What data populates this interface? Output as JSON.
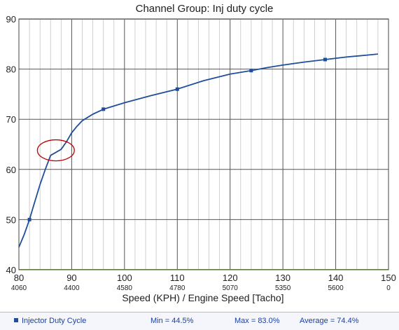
{
  "chart_data": {
    "type": "line",
    "title": "Channel Group: Inj duty cycle",
    "xlabel": "Speed (KPH) / Engine Speed [Tacho]",
    "ylabel": "",
    "xlim": [
      80,
      150
    ],
    "ylim": [
      40,
      90
    ],
    "x_ticks": [
      80,
      90,
      100,
      110,
      120,
      130,
      140,
      150
    ],
    "x_tick_labels": [
      "80",
      "90",
      "100",
      "110",
      "120",
      "130",
      "140",
      "150"
    ],
    "x_secondary_tick_labels": [
      "4060",
      "4400",
      "4580",
      "4780",
      "5070",
      "5350",
      "5600",
      "0"
    ],
    "y_ticks": [
      40,
      50,
      60,
      70,
      80,
      90
    ],
    "y_tick_labels": [
      "40",
      "50",
      "60",
      "70",
      "80",
      "90"
    ],
    "grid": true,
    "series": [
      {
        "name": "Injector Duty Cycle",
        "color": "#1f4e9b",
        "x": [
          80,
          81,
          82,
          83,
          84,
          85,
          86,
          88,
          89,
          90,
          91,
          92,
          94,
          96,
          100,
          105,
          110,
          115,
          120,
          124,
          127,
          130,
          134,
          138,
          142,
          146,
          148
        ],
        "y": [
          44.5,
          47,
          50,
          53.5,
          57,
          60,
          62.8,
          64,
          65.5,
          67.3,
          68.6,
          69.7,
          71,
          72,
          73.3,
          74.7,
          76,
          77.7,
          79,
          79.7,
          80.3,
          80.8,
          81.4,
          81.9,
          82.4,
          82.8,
          83.0
        ],
        "marker_points": [
          {
            "x": 82,
            "y": 50
          },
          {
            "x": 96,
            "y": 72
          },
          {
            "x": 110,
            "y": 76
          },
          {
            "x": 124,
            "y": 79.7
          },
          {
            "x": 138,
            "y": 81.9
          }
        ]
      }
    ],
    "annotation": {
      "shape": "ellipse",
      "color": "#c00000",
      "center": {
        "x": 87,
        "y": 63.8
      },
      "radius_x_units": 3.5,
      "radius_y_units": 2.1
    },
    "legend": {
      "position": "bottom",
      "series_label": "Injector Duty Cycle",
      "min_text": "Min = 44.5%",
      "max_text": "Max = 83.0%",
      "average_text": "Average = 74.4%"
    }
  }
}
